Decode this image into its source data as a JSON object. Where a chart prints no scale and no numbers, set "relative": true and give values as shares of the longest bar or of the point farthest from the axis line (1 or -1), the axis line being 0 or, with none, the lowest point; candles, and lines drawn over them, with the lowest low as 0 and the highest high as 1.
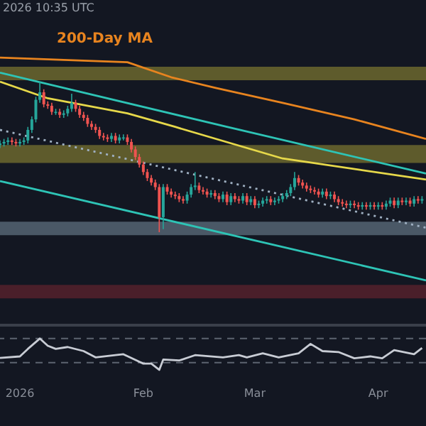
{
  "chart_data": [
    {
      "type": "candlestick",
      "relative": true,
      "tick_labels": false,
      "annotations": [
        "2026 10:35 UTC"
      ],
      "xlim": [
        "2025-12-27",
        "2026-04-13"
      ],
      "x": [
        "2025-12-27",
        "2025-12-28",
        "2025-12-29",
        "2025-12-30",
        "2025-12-31",
        "2026-01-01",
        "2026-01-02",
        "2026-01-03",
        "2026-01-04",
        "2026-01-05",
        "2026-01-06",
        "2026-01-07",
        "2026-01-08",
        "2026-01-09",
        "2026-01-10",
        "2026-01-11",
        "2026-01-12",
        "2026-01-13",
        "2026-01-14",
        "2026-01-15",
        "2026-01-16",
        "2026-01-17",
        "2026-01-18",
        "2026-01-19",
        "2026-01-20",
        "2026-01-21",
        "2026-01-22",
        "2026-01-23",
        "2026-01-24",
        "2026-01-25",
        "2026-01-26",
        "2026-01-27",
        "2026-01-28",
        "2026-01-29",
        "2026-01-30",
        "2026-01-31",
        "2026-02-01",
        "2026-02-02",
        "2026-02-03",
        "2026-02-04",
        "2026-02-05",
        "2026-02-06",
        "2026-02-07",
        "2026-02-08",
        "2026-02-09",
        "2026-02-10",
        "2026-02-11",
        "2026-02-12",
        "2026-02-13",
        "2026-02-14",
        "2026-02-15",
        "2026-02-16",
        "2026-02-17",
        "2026-02-18",
        "2026-02-19",
        "2026-02-20",
        "2026-02-21",
        "2026-02-22",
        "2026-02-23",
        "2026-02-24",
        "2026-02-25",
        "2026-02-26",
        "2026-02-27",
        "2026-02-28",
        "2026-03-01",
        "2026-03-02",
        "2026-03-03",
        "2026-03-04",
        "2026-03-05",
        "2026-03-06",
        "2026-03-07",
        "2026-03-08",
        "2026-03-09",
        "2026-03-10",
        "2026-03-11",
        "2026-03-12",
        "2026-03-13",
        "2026-03-14",
        "2026-03-15",
        "2026-03-16",
        "2026-03-17",
        "2026-03-18",
        "2026-03-19",
        "2026-03-20",
        "2026-03-21",
        "2026-03-22",
        "2026-03-23",
        "2026-03-24",
        "2026-03-25",
        "2026-03-26",
        "2026-03-27",
        "2026-03-28",
        "2026-03-29",
        "2026-03-30",
        "2026-03-31",
        "2026-04-01",
        "2026-04-02",
        "2026-04-03",
        "2026-04-04",
        "2026-04-05",
        "2026-04-06",
        "2026-04-07",
        "2026-04-08",
        "2026-04-09",
        "2026-04-10",
        "2026-04-11",
        "2026-04-12"
      ],
      "ohlc": [
        [
          0.58,
          0.61,
          0.56,
          0.59
        ],
        [
          0.59,
          0.62,
          0.57,
          0.6
        ],
        [
          0.6,
          0.63,
          0.58,
          0.61
        ],
        [
          0.61,
          0.63,
          0.58,
          0.6
        ],
        [
          0.6,
          0.62,
          0.57,
          0.59
        ],
        [
          0.59,
          0.62,
          0.57,
          0.6
        ],
        [
          0.6,
          0.63,
          0.58,
          0.61
        ],
        [
          0.61,
          0.7,
          0.59,
          0.68
        ],
        [
          0.68,
          0.77,
          0.66,
          0.75
        ],
        [
          0.75,
          0.9,
          0.73,
          0.88
        ],
        [
          0.88,
          1.0,
          0.86,
          0.93
        ],
        [
          0.93,
          0.95,
          0.83,
          0.85
        ],
        [
          0.85,
          0.87,
          0.82,
          0.84
        ],
        [
          0.84,
          0.86,
          0.78,
          0.8
        ],
        [
          0.8,
          0.82,
          0.78,
          0.8
        ],
        [
          0.8,
          0.82,
          0.76,
          0.78
        ],
        [
          0.78,
          0.81,
          0.76,
          0.79
        ],
        [
          0.79,
          0.84,
          0.77,
          0.82
        ],
        [
          0.82,
          0.92,
          0.8,
          0.86
        ],
        [
          0.86,
          0.88,
          0.8,
          0.82
        ],
        [
          0.82,
          0.84,
          0.76,
          0.78
        ],
        [
          0.78,
          0.8,
          0.74,
          0.76
        ],
        [
          0.76,
          0.78,
          0.7,
          0.72
        ],
        [
          0.72,
          0.74,
          0.68,
          0.7
        ],
        [
          0.7,
          0.72,
          0.66,
          0.68
        ],
        [
          0.68,
          0.7,
          0.62,
          0.64
        ],
        [
          0.64,
          0.66,
          0.61,
          0.63
        ],
        [
          0.63,
          0.65,
          0.6,
          0.62
        ],
        [
          0.62,
          0.66,
          0.6,
          0.64
        ],
        [
          0.64,
          0.66,
          0.59,
          0.61
        ],
        [
          0.61,
          0.65,
          0.59,
          0.63
        ],
        [
          0.63,
          0.65,
          0.61,
          0.63
        ],
        [
          0.63,
          0.65,
          0.58,
          0.6
        ],
        [
          0.6,
          0.62,
          0.53,
          0.55
        ],
        [
          0.55,
          0.57,
          0.48,
          0.5
        ],
        [
          0.5,
          0.52,
          0.43,
          0.45
        ],
        [
          0.45,
          0.47,
          0.38,
          0.4
        ],
        [
          0.4,
          0.42,
          0.34,
          0.36
        ],
        [
          0.36,
          0.38,
          0.31,
          0.33
        ],
        [
          0.33,
          0.35,
          0.28,
          0.3
        ],
        [
          0.3,
          0.32,
          0.0,
          0.1
        ],
        [
          0.1,
          0.32,
          0.02,
          0.3
        ],
        [
          0.3,
          0.32,
          0.25,
          0.27
        ],
        [
          0.27,
          0.29,
          0.23,
          0.25
        ],
        [
          0.25,
          0.27,
          0.22,
          0.24
        ],
        [
          0.24,
          0.26,
          0.2,
          0.22
        ],
        [
          0.22,
          0.24,
          0.19,
          0.21
        ],
        [
          0.21,
          0.27,
          0.19,
          0.25
        ],
        [
          0.25,
          0.32,
          0.23,
          0.3
        ],
        [
          0.3,
          0.4,
          0.28,
          0.31
        ],
        [
          0.31,
          0.33,
          0.26,
          0.28
        ],
        [
          0.28,
          0.3,
          0.25,
          0.27
        ],
        [
          0.27,
          0.29,
          0.23,
          0.25
        ],
        [
          0.25,
          0.28,
          0.23,
          0.26
        ],
        [
          0.26,
          0.28,
          0.22,
          0.24
        ],
        [
          0.24,
          0.26,
          0.2,
          0.22
        ],
        [
          0.22,
          0.27,
          0.2,
          0.25
        ],
        [
          0.25,
          0.27,
          0.18,
          0.2
        ],
        [
          0.2,
          0.26,
          0.18,
          0.24
        ],
        [
          0.24,
          0.26,
          0.2,
          0.22
        ],
        [
          0.22,
          0.24,
          0.19,
          0.21
        ],
        [
          0.21,
          0.26,
          0.19,
          0.24
        ],
        [
          0.24,
          0.26,
          0.18,
          0.2
        ],
        [
          0.2,
          0.24,
          0.18,
          0.22
        ],
        [
          0.22,
          0.24,
          0.16,
          0.18
        ],
        [
          0.18,
          0.21,
          0.16,
          0.19
        ],
        [
          0.19,
          0.23,
          0.17,
          0.21
        ],
        [
          0.21,
          0.24,
          0.19,
          0.22
        ],
        [
          0.22,
          0.24,
          0.18,
          0.2
        ],
        [
          0.2,
          0.23,
          0.18,
          0.21
        ],
        [
          0.21,
          0.24,
          0.19,
          0.22
        ],
        [
          0.22,
          0.26,
          0.2,
          0.24
        ],
        [
          0.24,
          0.28,
          0.22,
          0.26
        ],
        [
          0.26,
          0.32,
          0.24,
          0.3
        ],
        [
          0.3,
          0.4,
          0.28,
          0.36
        ],
        [
          0.36,
          0.38,
          0.31,
          0.33
        ],
        [
          0.33,
          0.35,
          0.29,
          0.31
        ],
        [
          0.31,
          0.33,
          0.27,
          0.29
        ],
        [
          0.29,
          0.31,
          0.26,
          0.28
        ],
        [
          0.28,
          0.3,
          0.25,
          0.27
        ],
        [
          0.27,
          0.29,
          0.23,
          0.25
        ],
        [
          0.25,
          0.29,
          0.23,
          0.27
        ],
        [
          0.27,
          0.29,
          0.22,
          0.24
        ],
        [
          0.24,
          0.27,
          0.22,
          0.25
        ],
        [
          0.25,
          0.27,
          0.2,
          0.22
        ],
        [
          0.22,
          0.24,
          0.18,
          0.2
        ],
        [
          0.2,
          0.22,
          0.17,
          0.19
        ],
        [
          0.19,
          0.21,
          0.16,
          0.18
        ],
        [
          0.18,
          0.21,
          0.16,
          0.19
        ],
        [
          0.19,
          0.21,
          0.16,
          0.18
        ],
        [
          0.18,
          0.2,
          0.15,
          0.17
        ],
        [
          0.17,
          0.2,
          0.15,
          0.18
        ],
        [
          0.18,
          0.2,
          0.15,
          0.17
        ],
        [
          0.17,
          0.2,
          0.15,
          0.18
        ],
        [
          0.18,
          0.2,
          0.15,
          0.17
        ],
        [
          0.17,
          0.2,
          0.15,
          0.18
        ],
        [
          0.18,
          0.2,
          0.15,
          0.17
        ],
        [
          0.17,
          0.21,
          0.15,
          0.19
        ],
        [
          0.19,
          0.23,
          0.17,
          0.21
        ],
        [
          0.21,
          0.23,
          0.16,
          0.18
        ],
        [
          0.18,
          0.23,
          0.16,
          0.21
        ],
        [
          0.21,
          0.23,
          0.18,
          0.2
        ],
        [
          0.2,
          0.23,
          0.18,
          0.21
        ],
        [
          0.21,
          0.23,
          0.17,
          0.19
        ],
        [
          0.19,
          0.24,
          0.17,
          0.22
        ],
        [
          0.22,
          0.24,
          0.19,
          0.21
        ],
        [
          0.21,
          0.24,
          0.19,
          0.22
        ]
      ],
      "series": [
        {
          "type": "line",
          "name": "200-Day MA",
          "color": "#e8841f",
          "x": [
            "2025-12-27",
            "2026-01-28",
            "2026-02-08",
            "2026-02-19",
            "2026-03-08",
            "2026-03-26",
            "2026-04-13"
          ],
          "values": [
            1.16,
            1.13,
            1.03,
            0.96,
            0.86,
            0.75,
            0.62
          ]
        },
        {
          "type": "line",
          "color": "#e6d84a",
          "x": [
            "2025-12-27",
            "2026-01-08",
            "2026-01-28",
            "2026-02-09",
            "2026-03-08",
            "2026-04-13"
          ],
          "values": [
            1.0,
            0.89,
            0.79,
            0.7,
            0.49,
            0.35
          ]
        },
        {
          "type": "line",
          "color": "#2ec4b6",
          "x": [
            "2025-12-27",
            "2026-02-22",
            "2026-04-13"
          ],
          "values": [
            1.06,
            0.7,
            0.39
          ]
        },
        {
          "type": "line",
          "color": "#2ec4b6",
          "x": [
            "2025-12-27",
            "2026-04-13"
          ],
          "values": [
            0.34,
            -0.32
          ]
        },
        {
          "type": "line",
          "color": "#9fb0c2",
          "line_style": "dotted",
          "x": [
            "2025-12-27",
            "2026-04-13"
          ],
          "values": [
            0.68,
            0.03
          ]
        }
      ],
      "bands": [
        {
          "axis": "y",
          "from": 1.01,
          "to": 1.1,
          "color": "#5e5b2c"
        },
        {
          "axis": "y",
          "from": 0.46,
          "to": 0.58,
          "color": "#5e5b2c"
        },
        {
          "axis": "y",
          "from": -0.02,
          "to": 0.07,
          "color": "#4a5866"
        },
        {
          "axis": "y",
          "from": -0.44,
          "to": -0.35,
          "color": "#4a1f2a"
        }
      ]
    },
    {
      "type": "line",
      "relative": true,
      "tick_labels": "x",
      "xlim": [
        "2025-12-27",
        "2026-04-13"
      ],
      "xticks": [
        {
          "value": "2026-01-01",
          "label": "2026"
        },
        {
          "value": "2026-02-01",
          "label": "Feb"
        },
        {
          "value": "2026-03-01",
          "label": "Mar"
        },
        {
          "value": "2026-04-01",
          "label": "Apr"
        }
      ],
      "x": [
        "2025-12-27",
        "2026-01-01",
        "2026-01-03",
        "2026-01-06",
        "2026-01-08",
        "2026-01-10",
        "2026-01-13",
        "2026-01-17",
        "2026-01-20",
        "2026-01-25",
        "2026-01-27",
        "2026-02-01",
        "2026-02-03",
        "2026-02-05",
        "2026-02-06",
        "2026-02-10",
        "2026-02-14",
        "2026-02-21",
        "2026-02-25",
        "2026-02-27",
        "2026-03-03",
        "2026-03-07",
        "2026-03-12",
        "2026-03-15",
        "2026-03-18",
        "2026-03-22",
        "2026-03-26",
        "2026-03-30",
        "2026-04-02",
        "2026-04-05",
        "2026-04-10",
        "2026-04-12"
      ],
      "series": [
        {
          "color": "#c8ccd4",
          "values": [
            0.38,
            0.43,
            0.67,
            1.0,
            0.77,
            0.67,
            0.73,
            0.6,
            0.4,
            0.47,
            0.5,
            0.2,
            0.2,
            0,
            0.33,
            0.3,
            0.47,
            0.4,
            0.47,
            0.4,
            0.53,
            0.4,
            0.53,
            0.83,
            0.6,
            0.57,
            0.37,
            0.43,
            0.37,
            0.63,
            0.5,
            0.7
          ]
        }
      ],
      "ref_lines": [
        {
          "axis": "y",
          "value": 1.0,
          "color": "#5d6470",
          "line_style": "dashed"
        },
        {
          "axis": "y",
          "value": 0.23,
          "color": "#5d6470",
          "line_style": "dashed"
        }
      ]
    }
  ]
}
